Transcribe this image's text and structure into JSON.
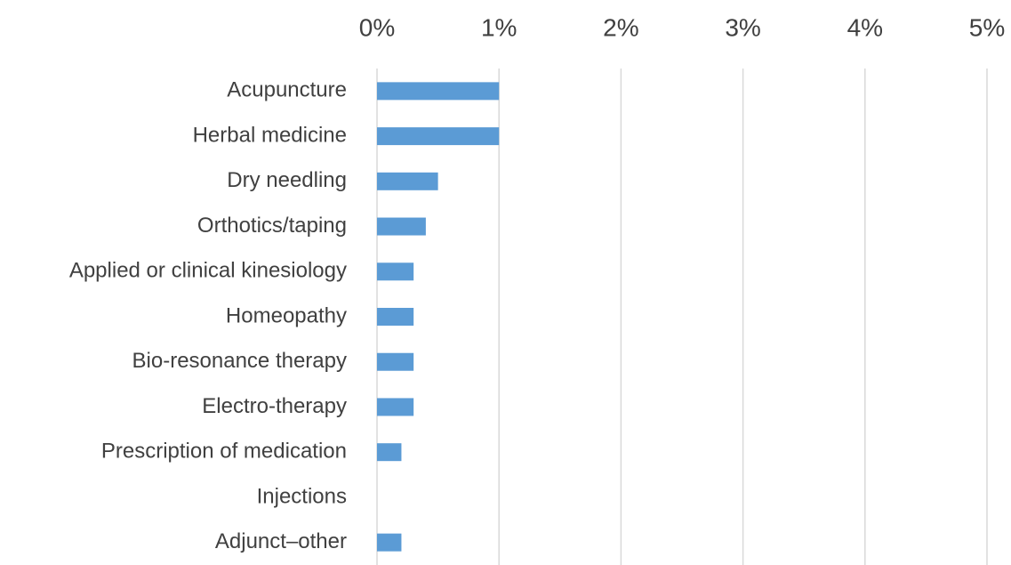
{
  "chart_data": {
    "type": "bar",
    "orientation": "horizontal",
    "categories": [
      "Acupuncture",
      "Herbal medicine",
      "Dry needling",
      "Orthotics/taping",
      "Applied or clinical kinesiology",
      "Homeopathy",
      "Bio-resonance therapy",
      "Electro-therapy",
      "Prescription of medication",
      "Injections",
      "Adjunct–other"
    ],
    "values": [
      1,
      1,
      0.5,
      0.4,
      0.3,
      0.3,
      0.3,
      0.3,
      0.2,
      0,
      0.2
    ],
    "color": "#5b9bd5",
    "xlim": [
      0,
      5
    ],
    "xticks": [
      {
        "value": 0,
        "label": "0%"
      },
      {
        "value": 1,
        "label": "1%"
      },
      {
        "value": 2,
        "label": "2%"
      },
      {
        "value": 3,
        "label": "3%"
      },
      {
        "value": 4,
        "label": "4%"
      },
      {
        "value": 5,
        "label": "5%"
      }
    ],
    "grid": true
  }
}
